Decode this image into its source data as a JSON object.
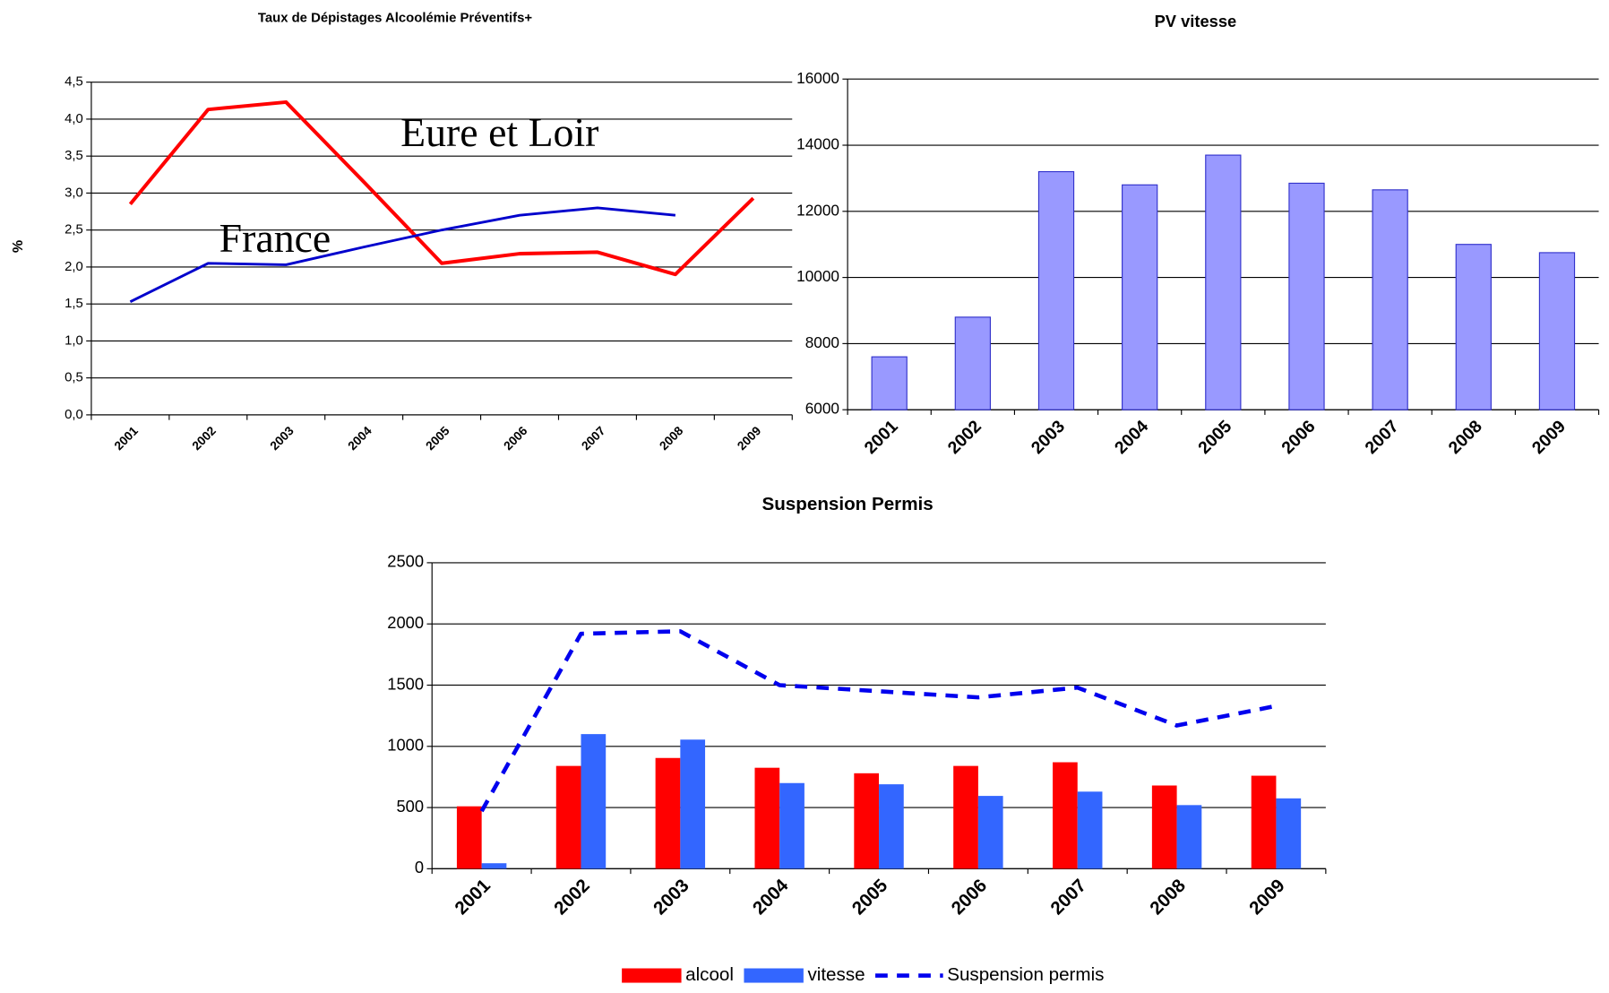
{
  "chart_data": [
    {
      "type": "line",
      "title": "Taux de Dépistages Alcoolémie Préventifs+",
      "ylabel": "%",
      "categories": [
        "2001",
        "2002",
        "2003",
        "2004",
        "2005",
        "2006",
        "2007",
        "2008",
        "2009"
      ],
      "series": [
        {
          "name": "Eure et Loir",
          "color": "#ff0000",
          "values": [
            2.85,
            4.13,
            4.23,
            3.15,
            2.05,
            2.18,
            2.2,
            1.9,
            2.93
          ]
        },
        {
          "name": "France",
          "color": "#0000cc",
          "values": [
            1.53,
            2.05,
            2.03,
            2.27,
            2.5,
            2.7,
            2.8,
            2.7,
            null
          ]
        }
      ],
      "ylim": [
        0,
        4.5
      ],
      "yticks": [
        {
          "value": 0,
          "label": "0,0"
        },
        {
          "value": 0.5,
          "label": "0,5"
        },
        {
          "value": 1,
          "label": "1,0"
        },
        {
          "value": 1.5,
          "label": "1,5"
        },
        {
          "value": 2,
          "label": "2,0"
        },
        {
          "value": 2.5,
          "label": "2,5"
        },
        {
          "value": 3,
          "label": "3,0"
        },
        {
          "value": 3.5,
          "label": "3,5"
        },
        {
          "value": 4,
          "label": "4,0"
        },
        {
          "value": 4.5,
          "label": "4,5"
        }
      ],
      "grid": true
    },
    {
      "type": "bar",
      "title": "PV vitesse",
      "categories": [
        "2001",
        "2002",
        "2003",
        "2004",
        "2005",
        "2006",
        "2007",
        "2008",
        "2009"
      ],
      "values": [
        7600,
        8800,
        13200,
        12800,
        13700,
        12850,
        12650,
        11000,
        10750
      ],
      "color": "#9999ff",
      "ylim": [
        6000,
        16000
      ],
      "yticks": [
        6000,
        8000,
        10000,
        12000,
        14000,
        16000
      ],
      "grid": true
    },
    {
      "type": "bar",
      "title": "Suspension Permis",
      "categories": [
        "2001",
        "2002",
        "2003",
        "2004",
        "2005",
        "2006",
        "2007",
        "2008",
        "2009"
      ],
      "series": [
        {
          "name": "alcool",
          "color": "#ff0000",
          "values": [
            510,
            840,
            905,
            825,
            780,
            840,
            870,
            680,
            760
          ]
        },
        {
          "name": "vitesse",
          "color": "#3366ff",
          "values": [
            45,
            1100,
            1055,
            700,
            690,
            595,
            630,
            520,
            575
          ]
        },
        {
          "name": "Suspension permis",
          "color": "#0000ee",
          "type": "line",
          "dashed": true,
          "values": [
            470,
            1920,
            1940,
            1500,
            1450,
            1400,
            1480,
            1170,
            1330
          ]
        }
      ],
      "ylim": [
        0,
        2500
      ],
      "yticks": [
        0,
        500,
        1000,
        1500,
        2000,
        2500
      ],
      "grid": true,
      "legend": "bottom"
    }
  ]
}
